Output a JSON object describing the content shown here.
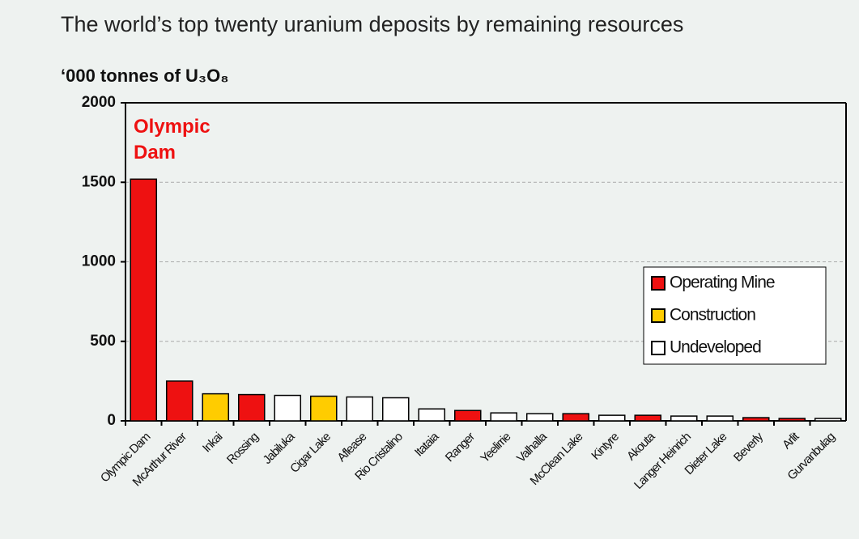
{
  "chart_data": {
    "type": "bar",
    "title": "The world’s top twenty uranium deposits by remaining resources",
    "y_label": "‘000 tonnes of U₃O₈",
    "annotation": "Olympic Dam",
    "categories": [
      "Olympic Dam",
      "McArthur River",
      "Inkai",
      "Rossing",
      "Jabiluka",
      "Cigar Lake",
      "Aflease",
      "Rio Cristalino",
      "Itataia",
      "Ranger",
      "Yeelirrie",
      "Valhalla",
      "McClean Lake",
      "Kintyre",
      "Akouta",
      "Langer Heinrich",
      "Dieter Lake",
      "Beverly",
      "Arlit",
      "Gurvanbulag"
    ],
    "series": [
      {
        "name": "Operating Mine",
        "color": "#ee1111",
        "values": [
          1520,
          250,
          null,
          165,
          null,
          null,
          null,
          null,
          null,
          65,
          null,
          null,
          45,
          null,
          35,
          null,
          null,
          20,
          15,
          null
        ]
      },
      {
        "name": "Construction",
        "color": "#ffcc00",
        "values": [
          null,
          null,
          170,
          null,
          null,
          155,
          null,
          null,
          null,
          null,
          null,
          null,
          null,
          null,
          null,
          null,
          null,
          null,
          null,
          null
        ]
      },
      {
        "name": "Undeveloped",
        "color": "#ffffff",
        "values": [
          null,
          null,
          null,
          null,
          160,
          null,
          150,
          145,
          75,
          null,
          50,
          45,
          null,
          35,
          null,
          30,
          30,
          null,
          null,
          15
        ]
      }
    ],
    "ylim": [
      0,
      2000
    ],
    "yticks": [
      0,
      500,
      1000,
      1500,
      2000
    ],
    "grid": true
  }
}
